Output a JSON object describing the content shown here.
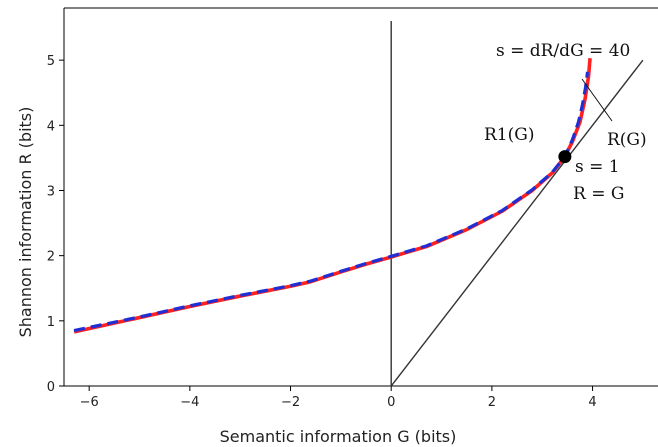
{
  "chart_data": {
    "type": "line",
    "xlabel": "Semantic information G (bits)",
    "ylabel": "Shannon information R (bits)",
    "xlim": [
      -6.5,
      5.3
    ],
    "ylim": [
      0,
      5.8
    ],
    "x_ticks": [
      -6,
      -4,
      -2,
      0,
      2,
      4
    ],
    "y_ticks": [
      0,
      1,
      2,
      3,
      4,
      5
    ],
    "grid": false,
    "series": [
      {
        "name": "R(G)",
        "color": "#ff2020",
        "style": "solid",
        "x": [
          -6.3,
          -5.0,
          -4.0,
          -3.0,
          -2.0,
          -1.6,
          -1.0,
          -0.5,
          0.0,
          0.7,
          1.5,
          2.2,
          2.8,
          3.2,
          3.45,
          3.6,
          3.75,
          3.85,
          3.92,
          3.95
        ],
        "y": [
          0.83,
          1.05,
          1.22,
          1.38,
          1.53,
          1.6,
          1.75,
          1.87,
          1.98,
          2.14,
          2.4,
          2.68,
          3.0,
          3.27,
          3.52,
          3.75,
          4.05,
          4.4,
          4.75,
          5.03
        ]
      },
      {
        "name": "R1(G)",
        "color": "#1f2fd4",
        "style": "dashed",
        "x": [
          -6.3,
          -5.0,
          -4.0,
          -3.0,
          -2.0,
          -1.6,
          -1.0,
          -0.5,
          0.0,
          0.7,
          1.5,
          2.2,
          2.8,
          3.2,
          3.45,
          3.6,
          3.72,
          3.8,
          3.86,
          3.9
        ],
        "y": [
          0.85,
          1.06,
          1.23,
          1.39,
          1.54,
          1.61,
          1.76,
          1.88,
          1.99,
          2.15,
          2.41,
          2.69,
          3.01,
          3.28,
          3.52,
          3.78,
          4.05,
          4.32,
          4.58,
          4.82
        ]
      }
    ],
    "reference_lines": [
      {
        "label": "R = G",
        "x": [
          0,
          5.0
        ],
        "y": [
          0,
          5.0
        ]
      },
      {
        "label": "G = 0",
        "x": [
          0,
          0
        ],
        "y": [
          0,
          5.6
        ]
      }
    ],
    "points": [
      {
        "x": 3.45,
        "y": 3.52
      }
    ],
    "annotations": {
      "slope_top": "s = dR/dG = 40",
      "r1_label": "R1(G)",
      "r_label": "R(G)",
      "s_one": "s = 1",
      "r_eq_g": "R = G"
    }
  }
}
